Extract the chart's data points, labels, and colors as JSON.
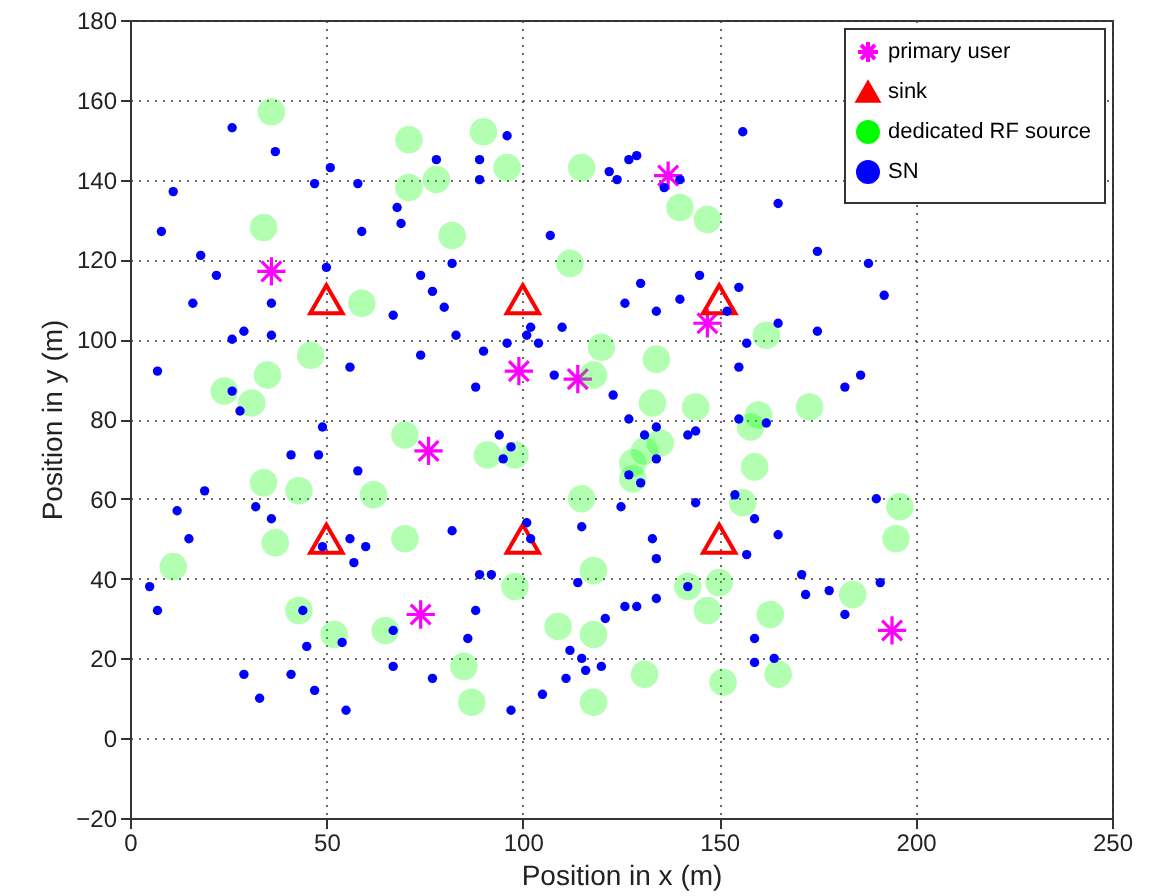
{
  "chart_data": {
    "type": "scatter",
    "xlabel": "Position in x (m)",
    "ylabel": "Position in y (m)",
    "xlim": [
      0,
      250
    ],
    "ylim": [
      -20,
      180
    ],
    "xticks": [
      0,
      50,
      100,
      150,
      200,
      250
    ],
    "yticks": [
      -20,
      0,
      20,
      40,
      60,
      80,
      100,
      120,
      140,
      160,
      180
    ],
    "grid": true,
    "legend": "top right",
    "series": [
      {
        "name": "primary user",
        "color": "#ff00ff",
        "marker": "cross",
        "x": [
          36,
          137,
          99,
          114,
          147,
          76,
          74,
          194
        ],
        "values": [
          117,
          141,
          92,
          90,
          104,
          72,
          31,
          27
        ]
      },
      {
        "name": "sink",
        "color": "#ff0000",
        "marker": "triangle",
        "x": [
          50,
          100,
          150,
          50,
          100,
          150
        ],
        "values": [
          110,
          110,
          110,
          50,
          50,
          50
        ]
      },
      {
        "name": "dedicated RF source",
        "color": "#00ff00",
        "marker": "circle",
        "x": [
          36,
          71,
          90,
          71,
          78,
          96,
          115,
          140,
          147,
          34,
          82,
          112,
          59,
          162,
          46,
          120,
          134,
          118,
          35,
          24,
          31,
          133,
          144,
          160,
          173,
          158,
          70,
          135,
          131,
          91,
          98,
          128,
          159,
          128,
          34,
          43,
          62,
          115,
          156,
          196,
          195,
          70,
          37,
          11,
          118,
          98,
          142,
          150,
          184,
          147,
          43,
          163,
          109,
          52,
          65,
          118,
          85,
          131,
          165,
          151,
          87,
          118
        ],
        "values": [
          157,
          150,
          152,
          138,
          140,
          143,
          143,
          133,
          130,
          128,
          126,
          119,
          109,
          101,
          96,
          98,
          95,
          91,
          91,
          87,
          84,
          84,
          83,
          81,
          83,
          78,
          76,
          74,
          72,
          71,
          71,
          69,
          68,
          65,
          64,
          62,
          61,
          60,
          59,
          58,
          50,
          50,
          49,
          43,
          42,
          38,
          38,
          39,
          36,
          32,
          32,
          31,
          28,
          26,
          27,
          26,
          18,
          16,
          16,
          14,
          9,
          9
        ]
      },
      {
        "name": "SN",
        "color": "#0000ff",
        "marker": "circle",
        "x": [
          26,
          37,
          11,
          51,
          47,
          58,
          68,
          69,
          59,
          8,
          18,
          22,
          50,
          16,
          36,
          67,
          74,
          77,
          80,
          82,
          78,
          29,
          26,
          36,
          83,
          7,
          56,
          74,
          26,
          28,
          49,
          41,
          48,
          96,
          89,
          89,
          122,
          124,
          127,
          129,
          136,
          140,
          156,
          165,
          175,
          107,
          130,
          126,
          134,
          140,
          145,
          155,
          152,
          110,
          102,
          101,
          96,
          104,
          90,
          108,
          88,
          123,
          157,
          155,
          175,
          165,
          94,
          97,
          95,
          127,
          131,
          134,
          142,
          144,
          155,
          162,
          134,
          127,
          130,
          125,
          101,
          102,
          82,
          115,
          133,
          134,
          144,
          154,
          159,
          165,
          157,
          171,
          172,
          89,
          92,
          88,
          114,
          134,
          142,
          129,
          126,
          121,
          86,
          112,
          115,
          120,
          116,
          111,
          105,
          97,
          159,
          159,
          164,
          58,
          19,
          12,
          32,
          36,
          15,
          49,
          56,
          60,
          57,
          5,
          7,
          44,
          54,
          67,
          45,
          67,
          77,
          29,
          41,
          33,
          47,
          55,
          188,
          192,
          186,
          182,
          190,
          178,
          182,
          191
        ],
        "values": [
          153,
          147,
          137,
          143,
          139,
          139,
          133,
          129,
          127,
          127,
          121,
          116,
          118,
          109,
          109,
          106,
          116,
          112,
          108,
          119,
          145,
          102,
          100,
          101,
          101,
          92,
          93,
          96,
          87,
          82,
          78,
          71,
          71,
          151,
          145,
          140,
          142,
          140,
          145,
          146,
          138,
          140,
          152,
          134,
          122,
          126,
          114,
          109,
          107,
          110,
          116,
          113,
          107,
          103,
          103,
          101,
          99,
          99,
          97,
          91,
          88,
          86,
          99,
          93,
          102,
          104,
          76,
          73,
          70,
          80,
          76,
          78,
          76,
          77,
          80,
          79,
          70,
          66,
          64,
          58,
          54,
          50,
          52,
          53,
          50,
          45,
          59,
          61,
          55,
          51,
          46,
          41,
          36,
          41,
          41,
          32,
          39,
          35,
          38,
          33,
          33,
          30,
          25,
          22,
          20,
          18,
          17,
          15,
          11,
          7,
          25,
          19,
          20,
          67,
          62,
          57,
          58,
          55,
          50,
          48,
          50,
          48,
          44,
          38,
          32,
          32,
          24,
          27,
          23,
          18,
          15,
          16,
          16,
          10,
          12,
          7,
          119,
          111,
          91,
          88,
          60,
          37,
          31,
          39
        ]
      }
    ]
  }
}
